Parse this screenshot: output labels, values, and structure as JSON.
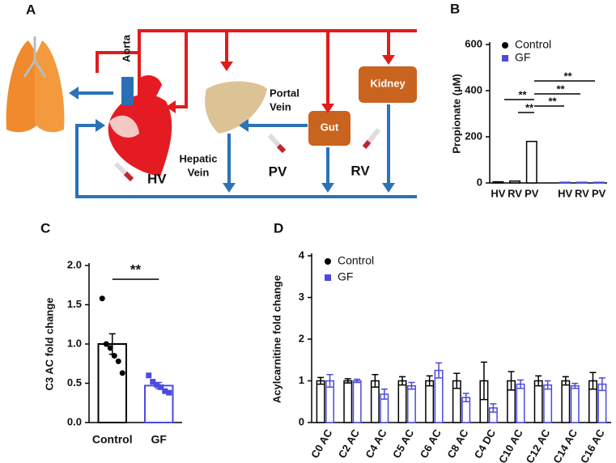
{
  "diagram": {
    "panel": "A",
    "aorta": "Aorta",
    "portal_vein": [
      "Portal",
      "Vein"
    ],
    "hepatic_vein": [
      "Hepatic",
      "Vein"
    ],
    "gut": "Gut",
    "kidney": "Kidney",
    "hv": "HV",
    "pv": "PV",
    "rv": "RV"
  },
  "chart_data": [
    {
      "type": "grouped-bar",
      "panel": "B",
      "y_label": "Propionate (µM)",
      "categories": [
        "HV",
        "RV",
        "PV"
      ],
      "series": [
        {
          "name": "Control",
          "color": "#000000",
          "values": [
            5,
            8,
            180
          ]
        },
        {
          "name": "GF",
          "color": "#4b4bdf",
          "values": [
            3,
            3,
            3
          ]
        }
      ],
      "ylim": [
        0,
        600
      ],
      "yticks": [
        0,
        200,
        400,
        600
      ],
      "annotations": [
        "**",
        "**",
        "**",
        "**",
        "**"
      ]
    },
    {
      "type": "dot-bar",
      "panel": "C",
      "y_label": "C3 AC fold change",
      "categories": [
        "Control",
        "GF"
      ],
      "colors": [
        "#000000",
        "#4b4bdf"
      ],
      "values": [
        1.0,
        0.47
      ],
      "errors": [
        0.13,
        0.04
      ],
      "points": [
        [
          1.58,
          1.0,
          0.95,
          0.85,
          0.78,
          0.63
        ],
        [
          0.6,
          0.52,
          0.48,
          0.45,
          0.4,
          0.38
        ]
      ],
      "ylim": [
        0,
        2.0
      ],
      "yticks": [
        {
          "value": 0,
          "label": "0.0"
        },
        {
          "value": 0.5,
          "label": "0.5"
        },
        {
          "value": 1,
          "label": "1.0"
        },
        {
          "value": 1.5,
          "label": "1.5"
        },
        {
          "value": 2,
          "label": "2.0"
        }
      ],
      "annotations": [
        "**"
      ]
    },
    {
      "type": "paired-bar",
      "panel": "D",
      "y_label": "Acylcarnitine fold change",
      "categories": [
        "C0 AC",
        "C2 AC",
        "C4 AC",
        "C5 AC",
        "C6 AC",
        "C8 AC",
        "C4 DC",
        "C10 AC",
        "C12 AC",
        "C14 AC",
        "C16 AC"
      ],
      "series": [
        {
          "name": "Control",
          "color": "#000000",
          "values": [
            1,
            1,
            1,
            1,
            1,
            1,
            1,
            1,
            1,
            1,
            1
          ],
          "errors": [
            0.08,
            0.05,
            0.15,
            0.1,
            0.12,
            0.18,
            0.45,
            0.22,
            0.12,
            0.1,
            0.2
          ]
        },
        {
          "name": "GF",
          "color": "#4b4bdf",
          "values": [
            1.0,
            1.0,
            0.68,
            0.88,
            1.25,
            0.6,
            0.35,
            0.92,
            0.9,
            0.88,
            0.92
          ],
          "errors": [
            0.15,
            0.04,
            0.12,
            0.08,
            0.18,
            0.1,
            0.1,
            0.1,
            0.1,
            0.06,
            0.15
          ]
        }
      ],
      "ylim": [
        0,
        4
      ],
      "yticks": [
        0,
        1,
        2,
        3,
        4
      ]
    }
  ]
}
